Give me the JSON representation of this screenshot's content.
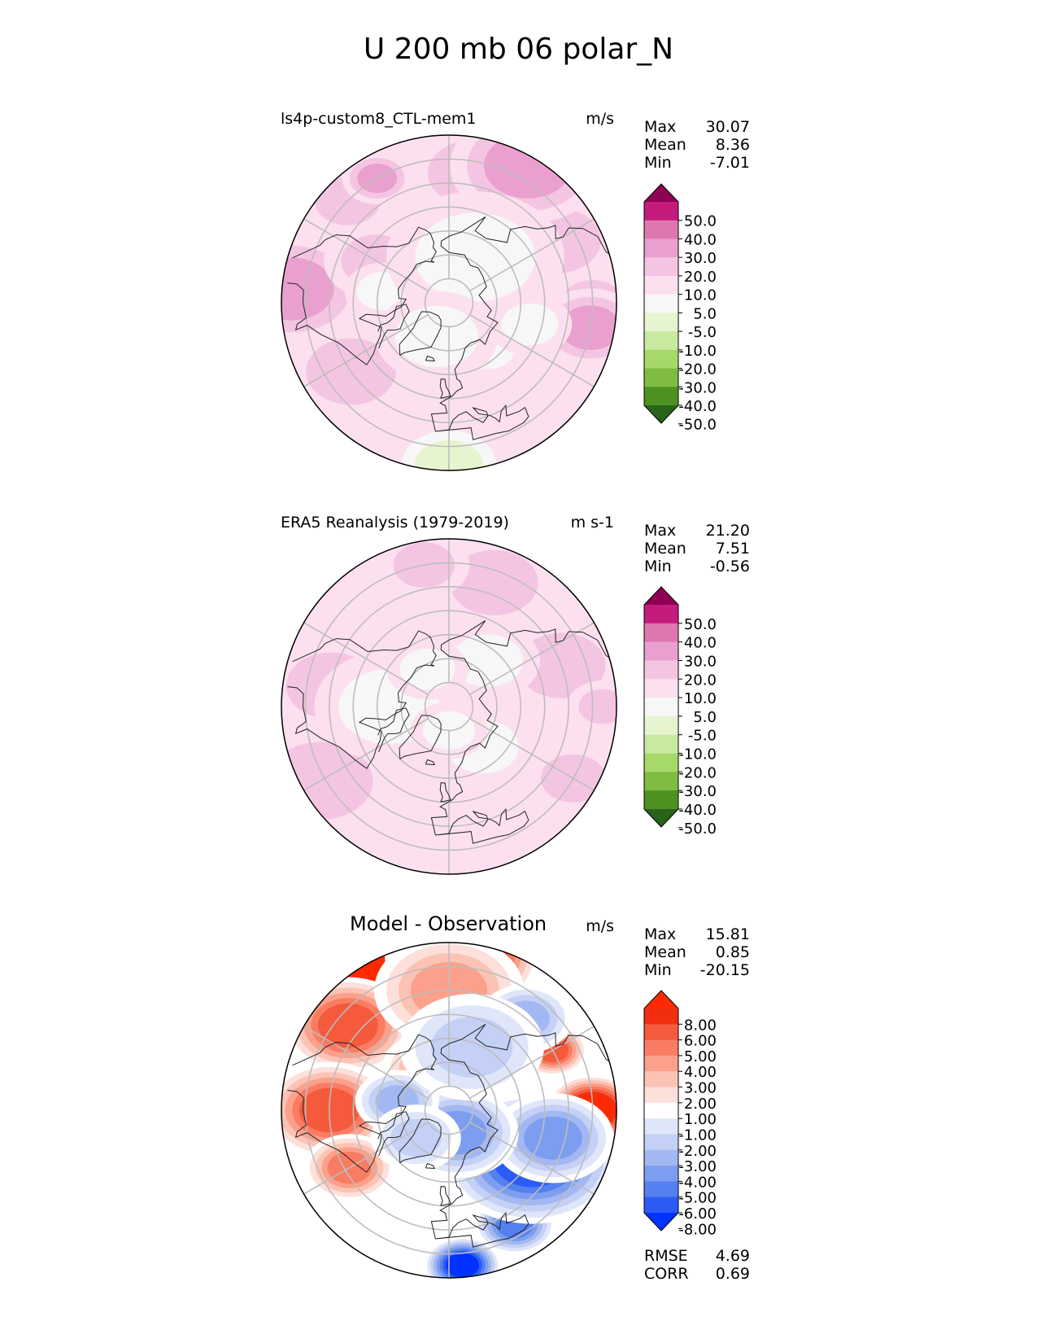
{
  "figure": {
    "title": "U 200 mb 06 polar_N"
  },
  "palettes": {
    "abs": [
      "#276419",
      "#4d9221",
      "#7fbc41",
      "#a6d96a",
      "#c9e8a0",
      "#e6f5d0",
      "#f7f7f7",
      "#fde0ef",
      "#f4c5e2",
      "#eaa0cf",
      "#de77ae",
      "#c51b7d",
      "#8e0152"
    ],
    "diff": [
      "#0033ff",
      "#2c5cf5",
      "#5580f0",
      "#7d9ef0",
      "#a3b8f2",
      "#c4d0f5",
      "#e0e6fa",
      "#ffffff",
      "#fde0da",
      "#fcc3b5",
      "#fba08b",
      "#f97c63",
      "#f55a3c",
      "#f22e10",
      "#ff2a00"
    ]
  },
  "chart_data": [
    {
      "type": "heatmap",
      "title": "ls4p-custom8_CTL-mem1",
      "units": "m/s",
      "stats": {
        "max_label": "Max",
        "max": "30.07",
        "mean_label": "Mean",
        "mean": "8.36",
        "min_label": "Min",
        "min": "-7.01"
      },
      "colorbar": {
        "ticks": [
          "50.0",
          "40.0",
          "30.0",
          "20.0",
          "10.0",
          "5.0",
          "-5.0",
          "-10.0",
          "-20.0",
          "-30.0",
          "-40.0",
          "-50.0"
        ],
        "extend": "both"
      },
      "field": {
        "base_level": 7,
        "blobs": [
          {
            "lat": 40,
            "lon": -55,
            "level": 8
          },
          {
            "lat": 38,
            "lon": 120,
            "level": 8
          },
          {
            "lat": 35,
            "lon": 170,
            "level": 8
          },
          {
            "lat": 30,
            "lon": 90,
            "level": 8
          },
          {
            "lat": 30,
            "lon": -135,
            "level": 8
          },
          {
            "lat": 30,
            "lon": -150,
            "level": 9
          },
          {
            "lat": 24,
            "lon": 150,
            "level": 9
          },
          {
            "lat": 24,
            "lon": -95,
            "level": 9
          },
          {
            "lat": 30,
            "lon": 80,
            "level": 9
          },
          {
            "lat": 55,
            "lon": -120,
            "level": 8
          },
          {
            "lat": 62,
            "lon": -100,
            "level": 6
          },
          {
            "lat": 65,
            "lon": 40,
            "level": 6
          },
          {
            "lat": 68,
            "lon": 150,
            "level": 6
          },
          {
            "lat": 22,
            "lon": 0,
            "level": 5
          },
          {
            "lat": 75,
            "lon": -20,
            "level": 6
          },
          {
            "lat": 55,
            "lon": 75,
            "level": 6
          }
        ]
      }
    },
    {
      "type": "heatmap",
      "title": "ERA5 Reanalysis (1979-2019)",
      "units": "m s-1",
      "stats": {
        "max_label": "Max",
        "max": "21.20",
        "mean_label": "Mean",
        "mean": "7.51",
        "min_label": "Min",
        "min": "-0.56"
      },
      "colorbar": {
        "ticks": [
          "50.0",
          "40.0",
          "30.0",
          "20.0",
          "10.0",
          "5.0",
          "-5.0",
          "-10.0",
          "-20.0",
          "-30.0",
          "-40.0",
          "-50.0"
        ],
        "extend": "both"
      },
      "field": {
        "base_level": 7,
        "blobs": [
          {
            "lat": 40,
            "lon": -100,
            "level": 8
          },
          {
            "lat": 40,
            "lon": 110,
            "level": 8
          },
          {
            "lat": 35,
            "lon": 160,
            "level": 8
          },
          {
            "lat": 30,
            "lon": -170,
            "level": 8
          },
          {
            "lat": 30,
            "lon": 60,
            "level": 8
          },
          {
            "lat": 26,
            "lon": 90,
            "level": 8
          },
          {
            "lat": 28,
            "lon": -60,
            "level": 8
          },
          {
            "lat": 65,
            "lon": -90,
            "level": 6
          },
          {
            "lat": 68,
            "lon": 40,
            "level": 6
          },
          {
            "lat": 65,
            "lon": 140,
            "level": 6
          },
          {
            "lat": 80,
            "lon": 0,
            "level": 6
          },
          {
            "lat": 72,
            "lon": -150,
            "level": 6
          }
        ]
      }
    },
    {
      "type": "heatmap",
      "title": "Model - Observation",
      "units": "m/s",
      "stats": {
        "max_label": "Max",
        "max": "15.81",
        "mean_label": "Mean",
        "mean": "0.85",
        "min_label": "Min",
        "min": "-20.15"
      },
      "colorbar": {
        "ticks": [
          "8.00",
          "6.00",
          "5.00",
          "4.00",
          "3.00",
          "2.00",
          "1.00",
          "-1.00",
          "-2.00",
          "-3.00",
          "-4.00",
          "-5.00",
          "-6.00",
          "-8.00"
        ],
        "extend": "both"
      },
      "metrics": {
        "rmse_label": "RMSE",
        "rmse": "4.69",
        "corr_label": "CORR",
        "corr": "0.69"
      },
      "field": {
        "base_level": 7,
        "blobs": [
          {
            "lat": 25,
            "lon": -150,
            "level": 14
          },
          {
            "lat": 35,
            "lon": -130,
            "level": 12
          },
          {
            "lat": 40,
            "lon": -90,
            "level": 12
          },
          {
            "lat": 42,
            "lon": -60,
            "level": 11
          },
          {
            "lat": 30,
            "lon": 90,
            "level": 14
          },
          {
            "lat": 40,
            "lon": 120,
            "level": 12
          },
          {
            "lat": 25,
            "lon": 175,
            "level": 14
          },
          {
            "lat": 40,
            "lon": 180,
            "level": 10
          },
          {
            "lat": 70,
            "lon": 170,
            "level": 10
          },
          {
            "lat": 72,
            "lon": -160,
            "level": 10
          },
          {
            "lat": 25,
            "lon": 5,
            "level": 0
          },
          {
            "lat": 35,
            "lon": 30,
            "level": 2
          },
          {
            "lat": 50,
            "lon": 60,
            "level": 1
          },
          {
            "lat": 45,
            "lon": 75,
            "level": 3
          },
          {
            "lat": 80,
            "lon": 20,
            "level": 3
          },
          {
            "lat": 68,
            "lon": -100,
            "level": 4
          },
          {
            "lat": 72,
            "lon": -50,
            "level": 5
          },
          {
            "lat": 40,
            "lon": 140,
            "level": 4
          },
          {
            "lat": 62,
            "lon": 160,
            "level": 5
          }
        ]
      }
    }
  ]
}
